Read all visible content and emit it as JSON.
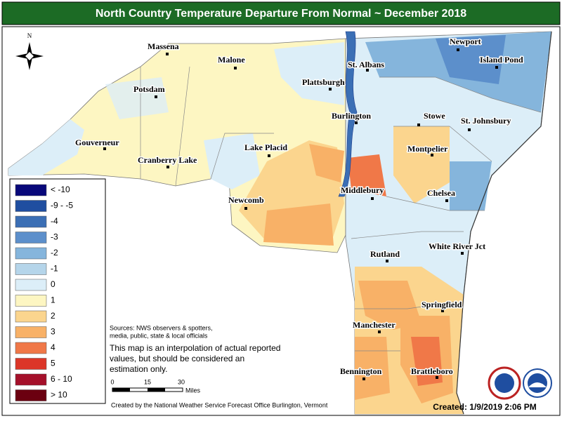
{
  "header": {
    "title": "North Country Temperature Departure From Normal ~ December 2018"
  },
  "north_arrow": "N",
  "legend": {
    "items": [
      {
        "label": "< -10",
        "color": "#08087a"
      },
      {
        "label": "-9 - -5",
        "color": "#1f4ea0"
      },
      {
        "label": "-4",
        "color": "#3b6fb5"
      },
      {
        "label": "-3",
        "color": "#5c8fcb"
      },
      {
        "label": "-2",
        "color": "#85b5dc"
      },
      {
        "label": "-1",
        "color": "#b5d5ea"
      },
      {
        "label": "0",
        "color": "#dceef8"
      },
      {
        "label": "1",
        "color": "#fdf6c2"
      },
      {
        "label": "2",
        "color": "#fbd58e"
      },
      {
        "label": "3",
        "color": "#f8b167"
      },
      {
        "label": "4",
        "color": "#f07848"
      },
      {
        "label": "5",
        "color": "#dc3628"
      },
      {
        "label": "6 - 10",
        "color": "#a5102a"
      },
      {
        "label": "> 10",
        "color": "#6b0010"
      }
    ]
  },
  "cities": [
    "Massena",
    "Malone",
    "Potsdam",
    "St. Albans",
    "Plattsburgh",
    "Newport",
    "Island Pond",
    "Burlington",
    "Stowe",
    "St. Johnsbury",
    "Gouverneur",
    "Lake Placid",
    "Montpelier",
    "Cranberry Lake",
    "Middlebury",
    "Chelsea",
    "Newcomb",
    "Rutland",
    "White River Jct",
    "Springfield",
    "Manchester",
    "Bennington",
    "Brattleboro"
  ],
  "sources": [
    "Sources: NWS observers & spotters,",
    "media, public, state & local officials"
  ],
  "note": [
    "This map is an interpolation of actual reported",
    "values, but should be considered an",
    "estimation only."
  ],
  "scale": {
    "ticks": [
      "0",
      "15",
      "30"
    ],
    "unit": "Miles"
  },
  "credit": "Created by the National Weather Service Forecast Office Burlington, Vermont",
  "created": "Created: 1/9/2019 2:06 PM"
}
